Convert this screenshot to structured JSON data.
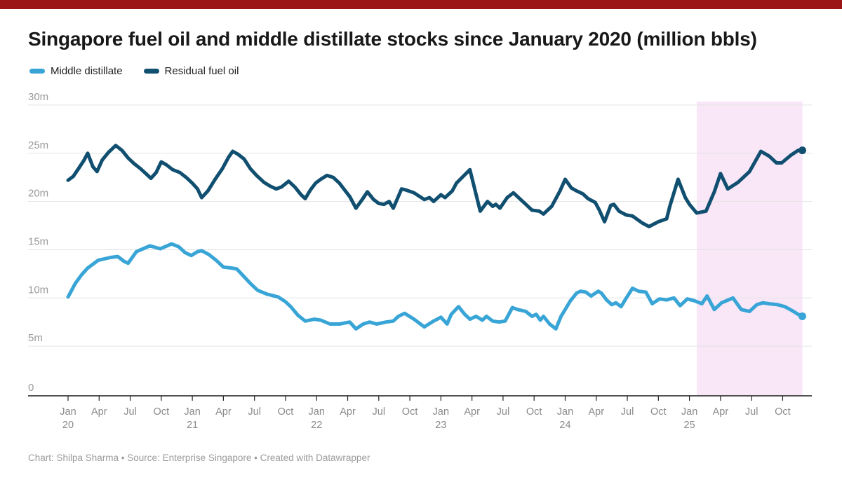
{
  "page": {
    "top_bar_color": "#9b1516"
  },
  "header": {
    "title": "Singapore fuel oil and middle distillate stocks since January 2020 (million bbls)"
  },
  "legend": {
    "items": [
      {
        "label": "Middle distillate",
        "color": "#38a5d6"
      },
      {
        "label": "Residual fuel oil",
        "color": "#114f70"
      }
    ]
  },
  "footer": {
    "text": "Chart: Shilpa Sharma • Source: Enterprise Singapore • Created with Datawrapper"
  },
  "chart_data": {
    "type": "line",
    "title": "Singapore fuel oil and middle distillate stocks since January 2020 (million bbls)",
    "y_unit": "million bbls",
    "ylim": [
      0,
      30
    ],
    "y_tick_labels": [
      "0",
      "5m",
      "10m",
      "15m",
      "20m",
      "25m",
      "30m"
    ],
    "x_tick_labels": [
      {
        "month": "Jan",
        "year": "20"
      },
      {
        "month": "Apr"
      },
      {
        "month": "Jul"
      },
      {
        "month": "Oct"
      },
      {
        "month": "Jan",
        "year": "21"
      },
      {
        "month": "Apr"
      },
      {
        "month": "Jul"
      },
      {
        "month": "Oct"
      },
      {
        "month": "Jan",
        "year": "22"
      },
      {
        "month": "Apr"
      },
      {
        "month": "Jul"
      },
      {
        "month": "Oct"
      },
      {
        "month": "Jan",
        "year": "23"
      },
      {
        "month": "Apr"
      },
      {
        "month": "Jul"
      },
      {
        "month": "Oct"
      },
      {
        "month": "Jan",
        "year": "24"
      },
      {
        "month": "Apr"
      },
      {
        "month": "Jul"
      },
      {
        "month": "Oct"
      },
      {
        "month": "Jan",
        "year": "25"
      },
      {
        "month": "Apr"
      },
      {
        "month": "Jul"
      },
      {
        "month": "Oct"
      }
    ],
    "grid": "horizontal",
    "legend_position": "top-left",
    "highlight_region": {
      "from_month": 60.7,
      "to_month": 70.9,
      "color": "#f9e7f7"
    },
    "series": [
      {
        "name": "Middle distillate",
        "color": "#38a5d6",
        "points": [
          [
            0,
            10.1
          ],
          [
            0.7,
            11.5
          ],
          [
            1.3,
            12.4
          ],
          [
            1.9,
            13.1
          ],
          [
            2.9,
            13.9
          ],
          [
            4.1,
            14.2
          ],
          [
            4.8,
            14.3
          ],
          [
            5.4,
            13.8
          ],
          [
            5.8,
            13.6
          ],
          [
            6.6,
            14.8
          ],
          [
            7.9,
            15.4
          ],
          [
            8.9,
            15.1
          ],
          [
            10,
            15.6
          ],
          [
            10.7,
            15.3
          ],
          [
            11.3,
            14.7
          ],
          [
            11.9,
            14.4
          ],
          [
            12.5,
            14.8
          ],
          [
            12.9,
            14.9
          ],
          [
            13.6,
            14.5
          ],
          [
            14.3,
            13.9
          ],
          [
            15,
            13.2
          ],
          [
            15.8,
            13.1
          ],
          [
            16.3,
            13
          ],
          [
            17,
            12.2
          ],
          [
            17.6,
            11.5
          ],
          [
            18.3,
            10.8
          ],
          [
            19.2,
            10.4
          ],
          [
            20.3,
            10.1
          ],
          [
            21,
            9.6
          ],
          [
            21.5,
            9.1
          ],
          [
            22.2,
            8.2
          ],
          [
            22.9,
            7.6
          ],
          [
            23.8,
            7.8
          ],
          [
            24.4,
            7.7
          ],
          [
            25.3,
            7.3
          ],
          [
            26.2,
            7.3
          ],
          [
            27.2,
            7.5
          ],
          [
            27.8,
            6.8
          ],
          [
            28.5,
            7.3
          ],
          [
            29.1,
            7.5
          ],
          [
            29.8,
            7.3
          ],
          [
            30.7,
            7.5
          ],
          [
            31.4,
            7.6
          ],
          [
            31.9,
            8.1
          ],
          [
            32.5,
            8.4
          ],
          [
            33.4,
            7.8
          ],
          [
            34.4,
            7
          ],
          [
            35.3,
            7.6
          ],
          [
            36,
            8
          ],
          [
            36.6,
            7.3
          ],
          [
            37,
            8.3
          ],
          [
            37.7,
            9.1
          ],
          [
            38.3,
            8.3
          ],
          [
            38.8,
            7.8
          ],
          [
            39.4,
            8.1
          ],
          [
            40,
            7.7
          ],
          [
            40.4,
            8.1
          ],
          [
            41,
            7.6
          ],
          [
            41.6,
            7.5
          ],
          [
            42.2,
            7.6
          ],
          [
            42.9,
            9
          ],
          [
            43.4,
            8.8
          ],
          [
            44.2,
            8.6
          ],
          [
            44.8,
            8.1
          ],
          [
            45.2,
            8.3
          ],
          [
            45.6,
            7.7
          ],
          [
            45.9,
            8.1
          ],
          [
            46.5,
            7.3
          ],
          [
            47.1,
            6.8
          ],
          [
            47.6,
            8.1
          ],
          [
            48,
            8.8
          ],
          [
            48.5,
            9.7
          ],
          [
            49.1,
            10.5
          ],
          [
            49.5,
            10.7
          ],
          [
            50,
            10.6
          ],
          [
            50.5,
            10.2
          ],
          [
            51.2,
            10.7
          ],
          [
            51.5,
            10.5
          ],
          [
            52,
            9.8
          ],
          [
            52.5,
            9.3
          ],
          [
            52.9,
            9.5
          ],
          [
            53.4,
            9.1
          ],
          [
            53.9,
            10
          ],
          [
            54.5,
            11
          ],
          [
            55.1,
            10.7
          ],
          [
            55.8,
            10.6
          ],
          [
            56.4,
            9.4
          ],
          [
            57.1,
            9.9
          ],
          [
            57.8,
            9.8
          ],
          [
            58.5,
            10
          ],
          [
            59.1,
            9.2
          ],
          [
            59.8,
            9.9
          ],
          [
            60.5,
            9.7
          ],
          [
            61.2,
            9.4
          ],
          [
            61.7,
            10.2
          ],
          [
            62.4,
            8.8
          ],
          [
            63.1,
            9.5
          ],
          [
            64.2,
            10
          ],
          [
            65,
            8.8
          ],
          [
            65.8,
            8.6
          ],
          [
            66.5,
            9.3
          ],
          [
            67.1,
            9.5
          ],
          [
            67.7,
            9.4
          ],
          [
            68.5,
            9.3
          ],
          [
            69.2,
            9.1
          ],
          [
            69.9,
            8.7
          ],
          [
            70.5,
            8.3
          ],
          [
            70.9,
            8.1
          ]
        ]
      },
      {
        "name": "Residual fuel oil",
        "color": "#114f70",
        "points": [
          [
            0,
            22.2
          ],
          [
            0.5,
            22.6
          ],
          [
            1,
            23.4
          ],
          [
            1.5,
            24.2
          ],
          [
            1.9,
            25
          ],
          [
            2.4,
            23.6
          ],
          [
            2.8,
            23.1
          ],
          [
            3.3,
            24.3
          ],
          [
            3.9,
            25.1
          ],
          [
            4.6,
            25.8
          ],
          [
            5.2,
            25.3
          ],
          [
            5.8,
            24.5
          ],
          [
            6.4,
            23.9
          ],
          [
            7,
            23.4
          ],
          [
            7.6,
            22.8
          ],
          [
            8,
            22.4
          ],
          [
            8.5,
            23
          ],
          [
            9,
            24.1
          ],
          [
            9.5,
            23.8
          ],
          [
            10.1,
            23.3
          ],
          [
            10.8,
            23
          ],
          [
            11.4,
            22.5
          ],
          [
            12,
            21.9
          ],
          [
            12.5,
            21.3
          ],
          [
            12.9,
            20.4
          ],
          [
            13.5,
            21.1
          ],
          [
            14.2,
            22.3
          ],
          [
            14.9,
            23.4
          ],
          [
            15.5,
            24.6
          ],
          [
            15.9,
            25.2
          ],
          [
            16.4,
            24.9
          ],
          [
            17,
            24.4
          ],
          [
            17.6,
            23.4
          ],
          [
            18.2,
            22.7
          ],
          [
            18.9,
            22
          ],
          [
            19.5,
            21.6
          ],
          [
            20.1,
            21.3
          ],
          [
            20.6,
            21.5
          ],
          [
            21.3,
            22.1
          ],
          [
            21.9,
            21.5
          ],
          [
            22.5,
            20.7
          ],
          [
            22.9,
            20.3
          ],
          [
            23.4,
            21.2
          ],
          [
            23.9,
            21.9
          ],
          [
            24.4,
            22.3
          ],
          [
            25,
            22.7
          ],
          [
            25.6,
            22.5
          ],
          [
            26.2,
            21.9
          ],
          [
            26.7,
            21.2
          ],
          [
            27.2,
            20.5
          ],
          [
            27.8,
            19.3
          ],
          [
            28.4,
            20.2
          ],
          [
            28.9,
            21
          ],
          [
            29.5,
            20.2
          ],
          [
            30,
            19.8
          ],
          [
            30.5,
            19.7
          ],
          [
            31,
            20
          ],
          [
            31.4,
            19.3
          ],
          [
            32.2,
            21.3
          ],
          [
            32.6,
            21.2
          ],
          [
            33.4,
            20.9
          ],
          [
            34.4,
            20.2
          ],
          [
            34.9,
            20.4
          ],
          [
            35.3,
            20
          ],
          [
            36,
            20.7
          ],
          [
            36.4,
            20.4
          ],
          [
            37.1,
            21.1
          ],
          [
            37.5,
            21.9
          ],
          [
            38.8,
            23.3
          ],
          [
            39.8,
            19
          ],
          [
            40.5,
            20
          ],
          [
            41,
            19.5
          ],
          [
            41.3,
            19.7
          ],
          [
            41.7,
            19.3
          ],
          [
            42.4,
            20.4
          ],
          [
            43,
            20.9
          ],
          [
            43.4,
            20.5
          ],
          [
            44.2,
            19.7
          ],
          [
            44.8,
            19.1
          ],
          [
            45.5,
            19
          ],
          [
            45.9,
            18.7
          ],
          [
            46.7,
            19.5
          ],
          [
            47.5,
            21.1
          ],
          [
            48,
            22.3
          ],
          [
            48.6,
            21.4
          ],
          [
            49.1,
            21.1
          ],
          [
            49.7,
            20.8
          ],
          [
            50.2,
            20.3
          ],
          [
            50.9,
            19.9
          ],
          [
            51.3,
            19.1
          ],
          [
            51.8,
            17.9
          ],
          [
            52.4,
            19.6
          ],
          [
            52.7,
            19.7
          ],
          [
            53.2,
            19
          ],
          [
            53.9,
            18.6
          ],
          [
            54.5,
            18.5
          ],
          [
            55.4,
            17.8
          ],
          [
            56.1,
            17.4
          ],
          [
            57,
            17.9
          ],
          [
            57.8,
            18.2
          ],
          [
            58.1,
            19.5
          ],
          [
            58.9,
            22.3
          ],
          [
            59.6,
            20.4
          ],
          [
            60,
            19.7
          ],
          [
            60.7,
            18.8
          ],
          [
            61.6,
            19
          ],
          [
            62.4,
            21
          ],
          [
            63,
            22.9
          ],
          [
            63.7,
            21.3
          ],
          [
            64.7,
            22
          ],
          [
            65.8,
            23.1
          ],
          [
            66.9,
            25.2
          ],
          [
            67.7,
            24.7
          ],
          [
            68.4,
            24
          ],
          [
            68.9,
            24
          ],
          [
            69.8,
            24.8
          ],
          [
            70.5,
            25.3
          ],
          [
            70.9,
            25.3
          ]
        ]
      }
    ]
  }
}
